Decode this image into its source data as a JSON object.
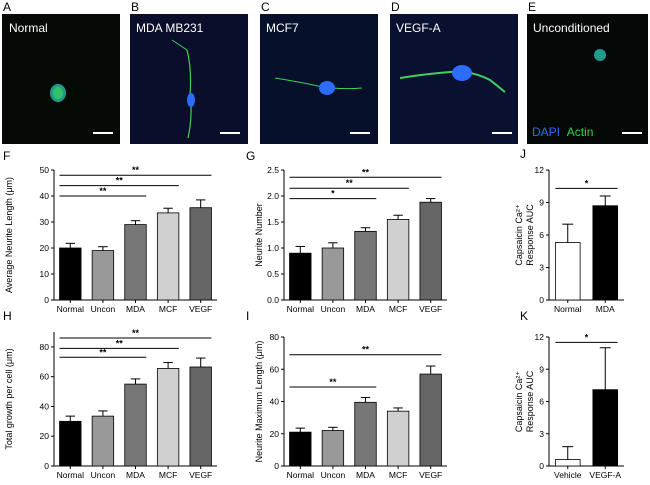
{
  "images": [
    {
      "letter": "A",
      "title": "Normal",
      "bg": "#050a05"
    },
    {
      "letter": "B",
      "title": "MDA MB231",
      "bg": "#0a0e2a"
    },
    {
      "letter": "C",
      "title": "MCF7",
      "bg": "#06102a"
    },
    {
      "letter": "D",
      "title": "VEGF-A",
      "bg": "#0a1030"
    },
    {
      "letter": "E",
      "title": "Unconditioned",
      "bg": "#040806"
    }
  ],
  "legend": {
    "dapi": "DAPI",
    "actin": "Actin",
    "dapi_color": "#2c6cff",
    "actin_color": "#2fd24a"
  },
  "chart_data": [
    {
      "panel": "F",
      "type": "bar",
      "categories": [
        "Normal",
        "Uncon",
        "MDA",
        "MCF",
        "VEGF"
      ],
      "values": [
        20,
        19,
        29,
        33.5,
        35.5
      ],
      "errors": [
        1.8,
        1.5,
        1.5,
        1.8,
        3
      ],
      "colors": [
        "#000000",
        "#999999",
        "#777777",
        "#d0d0d0",
        "#666666"
      ],
      "ylabel": "Average Neurite Length (μm)",
      "ylim": [
        0,
        50
      ],
      "yticks": [
        "0",
        "10",
        "20",
        "30",
        "40",
        "50"
      ],
      "sig": [
        {
          "from": 0,
          "to": 2,
          "y": 40,
          "label": "**"
        },
        {
          "from": 0,
          "to": 3,
          "y": 44,
          "label": "**"
        },
        {
          "from": 0,
          "to": 4,
          "y": 48,
          "label": "**"
        }
      ]
    },
    {
      "panel": "G",
      "type": "bar",
      "categories": [
        "Normal",
        "Uncon",
        "MDA",
        "MCF",
        "VEGF"
      ],
      "values": [
        0.9,
        1.0,
        1.32,
        1.55,
        1.88
      ],
      "errors": [
        0.13,
        0.1,
        0.07,
        0.08,
        0.07
      ],
      "colors": [
        "#000000",
        "#999999",
        "#777777",
        "#d0d0d0",
        "#666666"
      ],
      "ylabel": "Neurite Number",
      "ylim": [
        0,
        2.5
      ],
      "yticks": [
        "0.0",
        "0.5",
        "1.0",
        "1.5",
        "2.0",
        "2.5"
      ],
      "sig": [
        {
          "from": 0,
          "to": 2,
          "y": 1.95,
          "label": "*"
        },
        {
          "from": 0,
          "to": 3,
          "y": 2.15,
          "label": "**"
        },
        {
          "from": 0,
          "to": 4,
          "y": 2.36,
          "label": "**"
        }
      ]
    },
    {
      "panel": "J",
      "type": "bar",
      "categories": [
        "Normal",
        "MDA"
      ],
      "values": [
        5.3,
        8.7
      ],
      "errors": [
        1.7,
        0.9
      ],
      "colors": [
        "#ffffff",
        "#000000"
      ],
      "ylabel": "Capsaicin Ca²⁺ Response AUC",
      "ylim": [
        0,
        12
      ],
      "yticks": [
        "0",
        "3",
        "6",
        "9",
        "12"
      ],
      "sig": [
        {
          "from": 0,
          "to": 1,
          "y": 10.3,
          "label": "*"
        }
      ]
    },
    {
      "panel": "H",
      "type": "bar",
      "categories": [
        "Normal",
        "Uncon",
        "MDA",
        "MCF",
        "VEGF"
      ],
      "values": [
        30,
        33.5,
        55,
        65.5,
        66.5
      ],
      "errors": [
        3.5,
        3.5,
        3.5,
        4,
        6
      ],
      "colors": [
        "#000000",
        "#999999",
        "#777777",
        "#d0d0d0",
        "#666666"
      ],
      "ylabel": "Total growth per cell (μm)",
      "ylim": [
        0,
        90
      ],
      "yticks": [
        "0",
        "20",
        "40",
        "60",
        "80"
      ],
      "sig": [
        {
          "from": 0,
          "to": 2,
          "y": 73,
          "label": "**"
        },
        {
          "from": 0,
          "to": 3,
          "y": 79,
          "label": "**"
        },
        {
          "from": 0,
          "to": 4,
          "y": 86,
          "label": "**"
        }
      ]
    },
    {
      "panel": "I",
      "type": "bar",
      "categories": [
        "Normal",
        "Uncon",
        "MDA",
        "MCF",
        "VEGF"
      ],
      "values": [
        21,
        22,
        39.5,
        34,
        57
      ],
      "errors": [
        2.5,
        2,
        3,
        2,
        5
      ],
      "colors": [
        "#000000",
        "#999999",
        "#777777",
        "#d0d0d0",
        "#666666"
      ],
      "ylabel": "Neurite Maximum Length (μm)",
      "ylim": [
        0,
        80
      ],
      "yticks": [
        "0",
        "20",
        "40",
        "60",
        "80"
      ],
      "sig": [
        {
          "from": 0,
          "to": 2,
          "y": 49,
          "label": "**"
        },
        {
          "from": 0,
          "to": 4,
          "y": 69,
          "label": "**"
        }
      ]
    },
    {
      "panel": "K",
      "type": "bar",
      "categories": [
        "Vehicle",
        "VEGF-A"
      ],
      "values": [
        0.6,
        7.1
      ],
      "errors": [
        1.2,
        3.9
      ],
      "colors": [
        "#ffffff",
        "#000000"
      ],
      "ylabel": "Capsaicin Ca²⁺ Response AUC",
      "ylim": [
        0,
        12
      ],
      "yticks": [
        "0",
        "3",
        "6",
        "9",
        "12"
      ],
      "sig": [
        {
          "from": 0,
          "to": 1,
          "y": 11.5,
          "label": "*"
        }
      ]
    }
  ]
}
